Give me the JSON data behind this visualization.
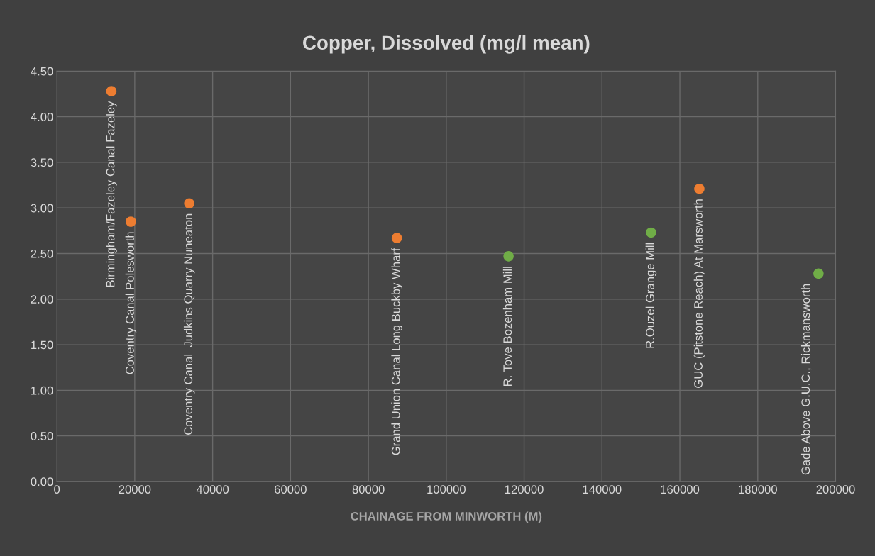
{
  "chart_data": {
    "type": "scatter",
    "title": "Copper, Dissolved (mg/l mean)",
    "xlabel": "CHAINAGE FROM MINWORTH (M)",
    "series": [
      {
        "color": "#ed7d31",
        "x": [
          14000,
          19000,
          34000,
          87300,
          165000
        ],
        "values": [
          4.28,
          2.85,
          3.05,
          2.67,
          3.21
        ]
      },
      {
        "color": "#70ad47",
        "x": [
          116000,
          152600,
          195600
        ],
        "values": [
          2.47,
          2.73,
          2.28
        ]
      }
    ],
    "annotations": [
      {
        "text": "Birmingham/Fazeley Canal Fazeley",
        "x": 14000,
        "y": 4.28
      },
      {
        "text": "Coventry Canal Polesworth",
        "x": 19000,
        "y": 2.85
      },
      {
        "text": "Coventry Canal  Judkins Quarry Nuneaton",
        "x": 34000,
        "y": 3.05
      },
      {
        "text": "Grand Union Canal Long Buckby Wharf",
        "x": 87300,
        "y": 2.67
      },
      {
        "text": "R. Tove Bozenham Mill",
        "x": 116000,
        "y": 2.47
      },
      {
        "text": "R.Ouzel Grange Mill",
        "x": 152600,
        "y": 2.73
      },
      {
        "text": "GUC (Pitstone Reach) At Marsworth",
        "x": 165000,
        "y": 3.21
      },
      {
        "text": "Gade Above G.U.C., Rickmansworth",
        "x": 195600,
        "y": 2.28
      }
    ],
    "xlim": [
      0,
      200000
    ],
    "xticks": [
      0,
      20000,
      40000,
      60000,
      80000,
      100000,
      120000,
      140000,
      160000,
      180000,
      200000
    ],
    "ylim": [
      0,
      4.5
    ],
    "yticks": [
      {
        "value": 0,
        "label": "0.00"
      },
      {
        "value": 0.5,
        "label": "0.50"
      },
      {
        "value": 1,
        "label": "1.00"
      },
      {
        "value": 1.5,
        "label": "1.50"
      },
      {
        "value": 2,
        "label": "2.00"
      },
      {
        "value": 2.5,
        "label": "2.50"
      },
      {
        "value": 3,
        "label": "3.00"
      },
      {
        "value": 3.5,
        "label": "3.50"
      },
      {
        "value": 4,
        "label": "4.00"
      },
      {
        "value": 4.5,
        "label": "4.50"
      }
    ],
    "grid": true,
    "marker": "circle",
    "legend": false
  }
}
